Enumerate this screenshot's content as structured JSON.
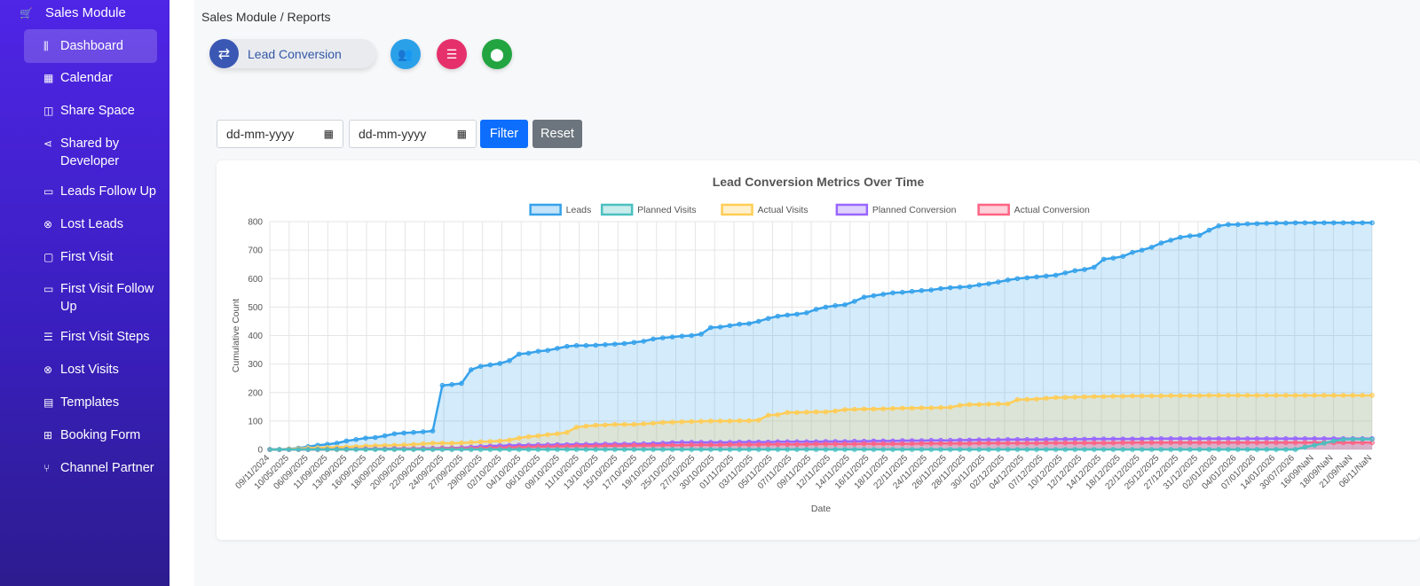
{
  "sidebar": {
    "module_title": "Sales Module",
    "items": [
      {
        "label": "Dashboard",
        "icon": "chart-bar-icon",
        "glyph": "⫼"
      },
      {
        "label": "Calendar",
        "icon": "calendar-icon",
        "glyph": "▦"
      },
      {
        "label": "Share Space",
        "icon": "book-open-icon",
        "glyph": "◫"
      },
      {
        "label": "Shared by Developer",
        "icon": "share-icon",
        "glyph": "⋖"
      },
      {
        "label": "Leads Follow Up",
        "icon": "chat-icon",
        "glyph": "▭"
      },
      {
        "label": "Lost Leads",
        "icon": "x-circle-icon",
        "glyph": "⊗"
      },
      {
        "label": "First Visit",
        "icon": "chat-square-icon",
        "glyph": "▢"
      },
      {
        "label": "First Visit Follow Up",
        "icon": "chat-icon",
        "glyph": "▭"
      },
      {
        "label": "First Visit Steps",
        "icon": "list-icon",
        "glyph": "☰"
      },
      {
        "label": "Lost Visits",
        "icon": "x-circle-icon",
        "glyph": "⊗"
      },
      {
        "label": "Templates",
        "icon": "file-icon",
        "glyph": "▤"
      },
      {
        "label": "Booking Form",
        "icon": "form-icon",
        "glyph": "⊞"
      },
      {
        "label": "Channel Partner",
        "icon": "diagram-icon",
        "glyph": "⑂"
      }
    ]
  },
  "breadcrumb": "Sales Module / Reports",
  "tabs": {
    "active_label": "Lead Conversion"
  },
  "filters": {
    "from_placeholder": "dd-mm-yyyy",
    "to_placeholder": "dd-mm-yyyy",
    "filter_label": "Filter",
    "reset_label": "Reset"
  },
  "colors": {
    "leads": "#36a2eb",
    "planned_visits": "#4bc0c0",
    "actual_visits": "#ffcd56",
    "planned_conversion": "#9966ff",
    "actual_conversion": "#ff6384",
    "filter_button": "#0d6efd",
    "reset_button": "#6c757d"
  },
  "chart_data": {
    "type": "area",
    "title": "Lead Conversion Metrics Over Time",
    "xlabel": "Date",
    "ylabel": "Cumulative Count",
    "ylim": [
      0,
      800
    ],
    "y_ticks": [
      0,
      100,
      200,
      300,
      400,
      500,
      600,
      700,
      800
    ],
    "legend_position": "top-center",
    "grid": true,
    "x_tick_labels": [
      "09/11/2024",
      "10/05/2025",
      "06/09/2025",
      "11/09/2025",
      "13/09/2025",
      "16/09/2025",
      "18/09/2025",
      "20/09/2025",
      "22/09/2025",
      "24/09/2025",
      "27/09/2025",
      "29/09/2025",
      "02/10/2025",
      "04/10/2025",
      "06/10/2025",
      "09/10/2025",
      "11/10/2025",
      "13/10/2025",
      "15/10/2025",
      "17/10/2025",
      "19/10/2025",
      "25/10/2025",
      "27/10/2025",
      "30/10/2025",
      "01/11/2025",
      "03/11/2025",
      "05/11/2025",
      "07/11/2025",
      "09/11/2025",
      "12/11/2025",
      "14/11/2025",
      "16/11/2025",
      "18/11/2025",
      "22/11/2025",
      "24/11/2025",
      "26/11/2025",
      "28/11/2025",
      "30/11/2025",
      "02/12/2025",
      "04/12/2025",
      "07/12/2025",
      "10/12/2025",
      "12/12/2025",
      "14/12/2025",
      "18/12/2025",
      "22/12/2025",
      "25/12/2025",
      "27/12/2025",
      "31/12/2025",
      "02/01/2026",
      "04/01/2026",
      "07/01/2026",
      "14/01/2026",
      "30/07/2026",
      "16/09/NaN",
      "18/09/NaN",
      "21/09/NaN",
      "06/11/NaN"
    ],
    "series": [
      {
        "name": "Leads",
        "key": "leads",
        "fill": true,
        "values": [
          0,
          0,
          2,
          5,
          10,
          15,
          18,
          22,
          30,
          35,
          40,
          42,
          48,
          55,
          58,
          60,
          62,
          65,
          225,
          228,
          232,
          280,
          292,
          297,
          302,
          312,
          335,
          338,
          345,
          348,
          355,
          362,
          365,
          365,
          366,
          368,
          370,
          372,
          376,
          380,
          388,
          392,
          395,
          398,
          400,
          405,
          428,
          430,
          435,
          440,
          442,
          450,
          460,
          468,
          472,
          475,
          480,
          492,
          500,
          505,
          508,
          520,
          535,
          540,
          545,
          550,
          552,
          555,
          558,
          560,
          565,
          568,
          570,
          572,
          578,
          582,
          588,
          595,
          600,
          603,
          606,
          609,
          612,
          620,
          628,
          632,
          640,
          668,
          672,
          678,
          692,
          700,
          710,
          725,
          735,
          745,
          750,
          752,
          770,
          785,
          790,
          790,
          792,
          793,
          794,
          795,
          795,
          796,
          796,
          796,
          796,
          796,
          796,
          796,
          796,
          796
        ]
      },
      {
        "name": "Planned Visits",
        "key": "planned_visits",
        "fill": false,
        "values": [
          0,
          0,
          0,
          0,
          0,
          0,
          0,
          0,
          0,
          0,
          0,
          0,
          0,
          0,
          0,
          0,
          0,
          0,
          0,
          0,
          0,
          0,
          0,
          0,
          0,
          0,
          0,
          0,
          0,
          0,
          0,
          0,
          0,
          0,
          0,
          0,
          0,
          0,
          0,
          0,
          0,
          0,
          0,
          0,
          0,
          0,
          0,
          0,
          0,
          0,
          0,
          0,
          0,
          0,
          0,
          0,
          0,
          0,
          0,
          0,
          0,
          0,
          0,
          0,
          0,
          0,
          0,
          0,
          0,
          0,
          0,
          0,
          0,
          0,
          0,
          0,
          0,
          0,
          0,
          0,
          0,
          0,
          0,
          0,
          0,
          0,
          0,
          0,
          0,
          0,
          0,
          0,
          0,
          0,
          0,
          0,
          0,
          0,
          0,
          0,
          0,
          0,
          0,
          0,
          0,
          0,
          0,
          0,
          8,
          15,
          22,
          30,
          35,
          36,
          36,
          36
        ]
      },
      {
        "name": "Actual Visits",
        "key": "actual_visits",
        "fill": true,
        "values": [
          0,
          0,
          2,
          3,
          5,
          6,
          7,
          8,
          9,
          10,
          12,
          13,
          14,
          15,
          16,
          18,
          20,
          22,
          22,
          22,
          23,
          25,
          27,
          28,
          30,
          33,
          40,
          45,
          48,
          52,
          55,
          60,
          78,
          82,
          85,
          86,
          88,
          88,
          88,
          90,
          92,
          95,
          96,
          97,
          98,
          99,
          100,
          100,
          100,
          101,
          101,
          103,
          120,
          122,
          130,
          130,
          131,
          132,
          132,
          135,
          140,
          141,
          142,
          142,
          143,
          144,
          145,
          145,
          146,
          146,
          147,
          148,
          155,
          158,
          158,
          159,
          160,
          160,
          175,
          176,
          177,
          180,
          182,
          183,
          184,
          185,
          186,
          186,
          187,
          187,
          188,
          188,
          188,
          188,
          189,
          189,
          189,
          189,
          190,
          190,
          190,
          190,
          190,
          190,
          190,
          190,
          190,
          190,
          190,
          190,
          190,
          190,
          190,
          190,
          190,
          190
        ]
      },
      {
        "name": "Planned Conversion",
        "key": "planned_conversion",
        "fill": true,
        "values": [
          0,
          0,
          0,
          0,
          0,
          0,
          0,
          1,
          1,
          1,
          2,
          2,
          2,
          3,
          3,
          3,
          4,
          4,
          5,
          5,
          6,
          8,
          10,
          12,
          13,
          14,
          15,
          15,
          16,
          16,
          17,
          17,
          18,
          18,
          18,
          19,
          19,
          19,
          20,
          20,
          21,
          22,
          24,
          25,
          25,
          25,
          25,
          25,
          25,
          26,
          26,
          26,
          26,
          27,
          27,
          27,
          27,
          27,
          28,
          28,
          28,
          29,
          29,
          30,
          30,
          30,
          31,
          31,
          31,
          32,
          32,
          32,
          33,
          33,
          34,
          34,
          34,
          35,
          35,
          35,
          35,
          35,
          36,
          36,
          36,
          36,
          37,
          37,
          37,
          37,
          37,
          37,
          38,
          38,
          38,
          38,
          38,
          38,
          38,
          38,
          38,
          38,
          38,
          38,
          38,
          38,
          38,
          38,
          38,
          38,
          38,
          38,
          38,
          38,
          38,
          38
        ]
      },
      {
        "name": "Actual Conversion",
        "key": "actual_conversion",
        "fill": true,
        "values": [
          0,
          0,
          0,
          0,
          0,
          0,
          0,
          0,
          0,
          1,
          1,
          1,
          1,
          1,
          2,
          2,
          2,
          2,
          3,
          3,
          3,
          4,
          5,
          6,
          6,
          7,
          8,
          9,
          10,
          10,
          11,
          11,
          12,
          12,
          12,
          13,
          13,
          13,
          14,
          14,
          14,
          15,
          15,
          15,
          16,
          16,
          16,
          16,
          17,
          17,
          17,
          17,
          18,
          18,
          18,
          18,
          18,
          19,
          19,
          19,
          19,
          19,
          20,
          20,
          20,
          20,
          20,
          20,
          21,
          21,
          21,
          21,
          21,
          21,
          22,
          22,
          22,
          22,
          22,
          22,
          22,
          23,
          23,
          23,
          23,
          23,
          23,
          23,
          23,
          24,
          24,
          24,
          24,
          24,
          24,
          24,
          24,
          24,
          24,
          24,
          24,
          24,
          24,
          24,
          24,
          24,
          24,
          24,
          24,
          24,
          24,
          24,
          24,
          24,
          24,
          24
        ]
      }
    ]
  }
}
